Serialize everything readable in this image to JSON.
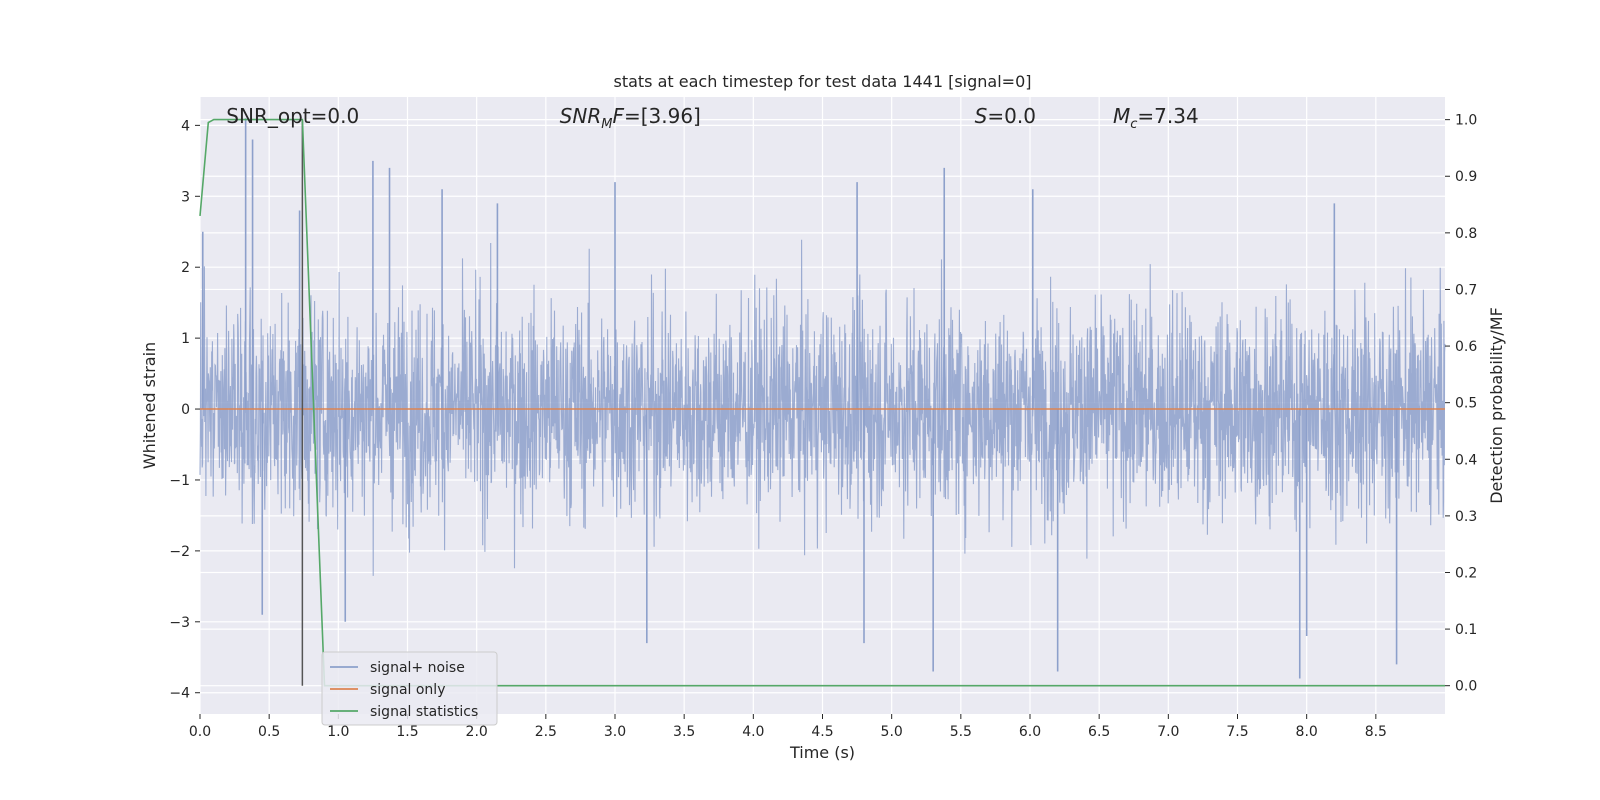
{
  "chart_data": {
    "type": "line",
    "title": "stats at each timestep for test data 1441 [signal=0]",
    "xlabel": "Time (s)",
    "ylabel": "Whitened strain",
    "ylabel_right": "Detection probability/MF",
    "xlim": [
      0,
      9.0
    ],
    "ylim": [
      -4.3,
      4.4
    ],
    "ylim_right": [
      -0.05,
      1.04
    ],
    "xticks": [
      "0.0",
      "0.5",
      "1.0",
      "1.5",
      "2.0",
      "2.5",
      "3.0",
      "3.5",
      "4.0",
      "4.5",
      "5.0",
      "5.5",
      "6.0",
      "6.5",
      "7.0",
      "7.5",
      "8.0",
      "8.5"
    ],
    "xtick_values": [
      0,
      0.5,
      1,
      1.5,
      2,
      2.5,
      3,
      3.5,
      4,
      4.5,
      5,
      5.5,
      6,
      6.5,
      7,
      7.5,
      8,
      8.5
    ],
    "yticks": [
      "4",
      "3",
      "2",
      "1",
      "0",
      "−1",
      "−2",
      "−3",
      "−4"
    ],
    "ytick_values": [
      4,
      3,
      2,
      1,
      0,
      -1,
      -2,
      -3,
      -4
    ],
    "yticks_right": [
      "1.0",
      "0.9",
      "0.8",
      "0.7",
      "0.6",
      "0.5",
      "0.4",
      "0.3",
      "0.2",
      "0.1",
      "0.0"
    ],
    "ytick_right_values": [
      1.0,
      0.9,
      0.8,
      0.7,
      0.6,
      0.5,
      0.4,
      0.3,
      0.2,
      0.1,
      0.0
    ],
    "grid": true,
    "legend_placement": "lower-left",
    "annotations": [
      {
        "label": "SNR_opt=0.0"
      },
      {
        "label": "SNR",
        "sub": "M",
        "suffix": "F=[3.96]"
      },
      {
        "label": "S",
        "suffix": "=0.0"
      },
      {
        "label": "M",
        "sub": "c",
        "suffix": "=7.34"
      }
    ],
    "series": [
      {
        "name": "signal+ noise",
        "color": "#8da0cb",
        "axis": "left",
        "description_of_values": "whitened noise, roughly within -2.5..3 with spikes to about ±4",
        "peaks": [
          [
            0.02,
            2.5
          ],
          [
            0.33,
            4.1
          ],
          [
            0.38,
            3.8
          ],
          [
            0.72,
            2.8
          ],
          [
            1.25,
            3.5
          ],
          [
            1.37,
            3.4
          ],
          [
            1.75,
            3.1
          ],
          [
            2.15,
            2.9
          ],
          [
            3.0,
            3.2
          ],
          [
            4.75,
            3.2
          ],
          [
            5.38,
            3.4
          ],
          [
            6.02,
            3.1
          ],
          [
            8.2,
            2.9
          ]
        ],
        "troughs": [
          [
            0.45,
            -2.9
          ],
          [
            1.05,
            -3.0
          ],
          [
            3.23,
            -3.3
          ],
          [
            4.8,
            -3.3
          ],
          [
            5.3,
            -3.7
          ],
          [
            6.2,
            -3.7
          ],
          [
            7.95,
            -3.8
          ],
          [
            8.0,
            -3.2
          ],
          [
            8.65,
            -3.6
          ]
        ]
      },
      {
        "name": "signal only",
        "color": "#dd8452",
        "axis": "left",
        "x": [
          0,
          9.0
        ],
        "y": [
          0,
          0
        ]
      },
      {
        "name": "signal statistics",
        "color": "#55a868",
        "axis": "right",
        "x": [
          0.0,
          0.06,
          0.1,
          0.3,
          0.5,
          0.72,
          0.74,
          0.9,
          0.95,
          9.0
        ],
        "y": [
          0.83,
          0.995,
          1.0,
          1.0,
          1.0,
          1.0,
          1.0,
          0.0,
          0.0,
          0.0
        ]
      }
    ],
    "vline": {
      "x": 0.74,
      "color": "#555555",
      "y_range": [
        0.0,
        1.0
      ]
    }
  }
}
